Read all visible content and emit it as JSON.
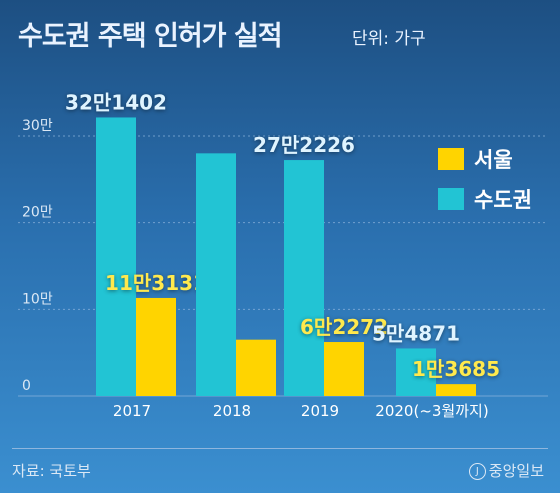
{
  "header": {
    "title": "수도권 주택 인허가 실적",
    "unit": "단위: 가구"
  },
  "footer": {
    "source": "자료: 국토부",
    "credit": "중앙일보",
    "credit_mark": "J"
  },
  "colors": {
    "seoul": "#ffd400",
    "metro": "#22c4d4",
    "seoul_label": "#ffe94d",
    "metro_label": "#dff4ff"
  },
  "chart_data": {
    "type": "bar",
    "title": "수도권 주택 인허가 실적",
    "unit": "단위: 가구",
    "categories": [
      "2017",
      "2018",
      "2019",
      "2020(~3월까지)"
    ],
    "series": [
      {
        "name": "수도권",
        "values": [
          321402,
          280000,
          272226,
          54871
        ],
        "labels": [
          "32만1402",
          "",
          "27만2226",
          "5만4871"
        ]
      },
      {
        "name": "서울",
        "values": [
          113131,
          65000,
          62272,
          13685
        ],
        "labels": [
          "11만3131",
          "",
          "6만2272",
          "1만3685"
        ]
      }
    ],
    "yticks": [
      {
        "value": 0,
        "label": "0"
      },
      {
        "value": 100000,
        "label": "10만"
      },
      {
        "value": 200000,
        "label": "20만"
      },
      {
        "value": 300000,
        "label": "30만"
      }
    ],
    "ylim": [
      0,
      330000
    ],
    "grid": true,
    "legend_position": "right"
  }
}
